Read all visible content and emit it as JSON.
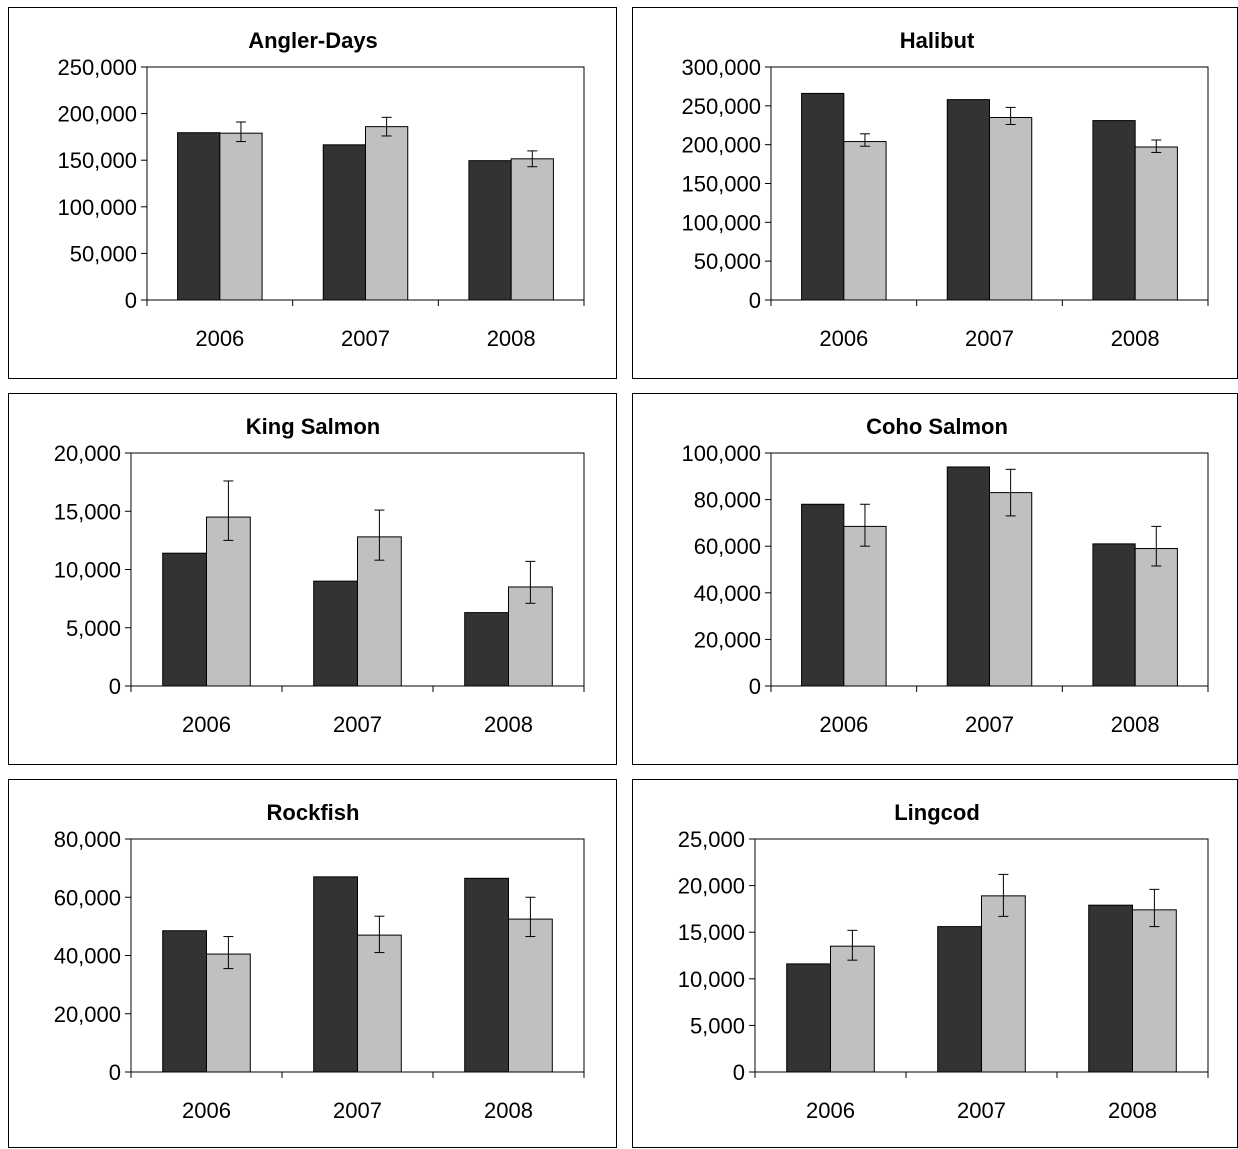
{
  "colors": {
    "series_dark": "#333333",
    "series_light": "#c0c0c0",
    "axis": "#000000"
  },
  "chart_data": [
    {
      "type": "bar",
      "title": "Angler-Days",
      "categories": [
        "2006",
        "2007",
        "2008"
      ],
      "ylim": [
        0,
        250000
      ],
      "yticks": [
        "0",
        "50,000",
        "100,000",
        "150,000",
        "200,000",
        "250,000"
      ],
      "series": [
        {
          "values": [
            179500,
            166500,
            149500
          ]
        },
        {
          "values": [
            179000,
            186000,
            151500
          ],
          "error": [
            [
              170000,
              191000
            ],
            [
              176000,
              196000
            ],
            [
              143000,
              160000
            ]
          ]
        }
      ],
      "grid": false,
      "legend": "none"
    },
    {
      "type": "bar",
      "title": "Halibut",
      "categories": [
        "2006",
        "2007",
        "2008"
      ],
      "ylim": [
        0,
        300000
      ],
      "yticks": [
        "0",
        "50,000",
        "100,000",
        "150,000",
        "200,000",
        "250,000",
        "300,000"
      ],
      "series": [
        {
          "values": [
            266000,
            258000,
            231000
          ]
        },
        {
          "values": [
            204000,
            235000,
            197000
          ],
          "error": [
            [
              198000,
              214000
            ],
            [
              226000,
              248000
            ],
            [
              190000,
              206000
            ]
          ]
        }
      ],
      "grid": false,
      "legend": "none"
    },
    {
      "type": "bar",
      "title": "King Salmon",
      "categories": [
        "2006",
        "2007",
        "2008"
      ],
      "ylim": [
        0,
        20000
      ],
      "yticks": [
        "0",
        "5,000",
        "10,000",
        "15,000",
        "20,000"
      ],
      "series": [
        {
          "values": [
            11400,
            9000,
            6300
          ]
        },
        {
          "values": [
            14500,
            12800,
            8500
          ],
          "error": [
            [
              12500,
              17600
            ],
            [
              10800,
              15100
            ],
            [
              7100,
              10700
            ]
          ]
        }
      ],
      "grid": false,
      "legend": "none"
    },
    {
      "type": "bar",
      "title": "Coho Salmon",
      "categories": [
        "2006",
        "2007",
        "2008"
      ],
      "ylim": [
        0,
        100000
      ],
      "yticks": [
        "0",
        "20,000",
        "40,000",
        "60,000",
        "80,000",
        "100,000"
      ],
      "series": [
        {
          "values": [
            78000,
            94000,
            61000
          ]
        },
        {
          "values": [
            68500,
            83000,
            59000
          ],
          "error": [
            [
              60000,
              78000
            ],
            [
              73000,
              93000
            ],
            [
              51500,
              68500
            ]
          ]
        }
      ],
      "grid": false,
      "legend": "none"
    },
    {
      "type": "bar",
      "title": "Rockfish",
      "categories": [
        "2006",
        "2007",
        "2008"
      ],
      "ylim": [
        0,
        80000
      ],
      "yticks": [
        "0",
        "20,000",
        "40,000",
        "60,000",
        "80,000"
      ],
      "series": [
        {
          "values": [
            48500,
            67000,
            66500
          ]
        },
        {
          "values": [
            40500,
            47000,
            52500
          ],
          "error": [
            [
              35500,
              46500
            ],
            [
              41000,
              53500
            ],
            [
              46500,
              60000
            ]
          ]
        }
      ],
      "grid": false,
      "legend": "none"
    },
    {
      "type": "bar",
      "title": "Lingcod",
      "categories": [
        "2006",
        "2007",
        "2008"
      ],
      "ylim": [
        0,
        25000
      ],
      "yticks": [
        "0",
        "5,000",
        "10,000",
        "15,000",
        "20,000",
        "25,000"
      ],
      "series": [
        {
          "values": [
            11600,
            15600,
            17900
          ]
        },
        {
          "values": [
            13500,
            18900,
            17400
          ],
          "error": [
            [
              12000,
              15200
            ],
            [
              16700,
              21200
            ],
            [
              15600,
              19600
            ]
          ]
        }
      ],
      "grid": false,
      "legend": "none"
    }
  ]
}
